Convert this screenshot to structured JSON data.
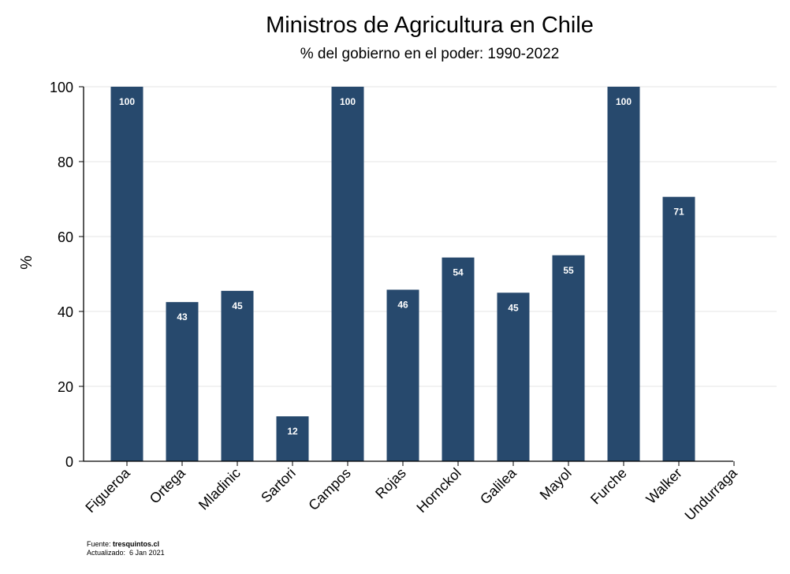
{
  "chart_data": {
    "type": "bar",
    "title": "Ministros de Agricultura en Chile",
    "subtitle": "% del gobierno en el poder: 1990-2022",
    "ylabel": "%",
    "xlabel": "",
    "ylim": [
      0,
      100
    ],
    "yticks": [
      "0",
      "20",
      "40",
      "60",
      "80",
      "100"
    ],
    "categories": [
      "Figueroa",
      "Ortega",
      "Mladinic",
      "Sartori",
      "Campos",
      "Rojas",
      "Hornckol",
      "Galilea",
      "Mayol",
      "Furche",
      "Walker",
      "Undurraga"
    ],
    "values": [
      100,
      42.5,
      45.5,
      12,
      100,
      45.8,
      54.4,
      45,
      55,
      100,
      70.6,
      null
    ],
    "data_labels": [
      "100",
      "43",
      "45",
      "12",
      "100",
      "46",
      "54",
      "45",
      "55",
      "100",
      "71",
      ""
    ],
    "bar_color": "#27496d",
    "grid": true
  },
  "footer": {
    "source_label": "Fuente:",
    "source_value": "tresquintos.cl",
    "updated_label": "Actualizado:",
    "updated_value": "6 Jan 2021"
  }
}
